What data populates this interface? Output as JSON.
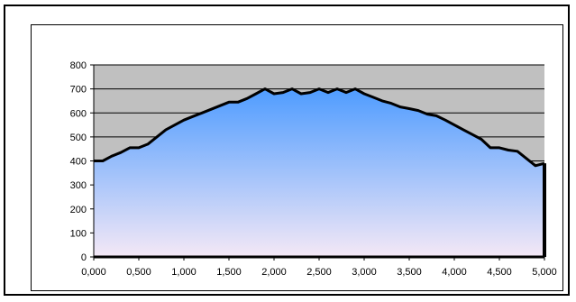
{
  "chart_data": {
    "type": "area",
    "title": "",
    "xlabel": "",
    "ylabel": "",
    "xlim": [
      0,
      5000
    ],
    "ylim": [
      0,
      800
    ],
    "x_ticks": [
      "0,000",
      "0,500",
      "1,000",
      "1,500",
      "2,000",
      "2,500",
      "3,000",
      "3,500",
      "4,000",
      "4,500",
      "5,000"
    ],
    "y_ticks": [
      "0",
      "100",
      "200",
      "300",
      "400",
      "500",
      "600",
      "700",
      "800"
    ],
    "grid": true,
    "legend": "none",
    "colors": {
      "plot_background": "#c0c0c0",
      "gridline": "#000000",
      "fill_top": "#4f9cff",
      "fill_bottom": "#f4e8f6",
      "line": "#000000"
    },
    "series": [
      {
        "x": [
          0,
          100,
          200,
          300,
          400,
          500,
          600,
          700,
          800,
          900,
          1000,
          1100,
          1200,
          1300,
          1400,
          1500,
          1600,
          1700,
          1800,
          1900,
          2000,
          2100,
          2200,
          2300,
          2400,
          2500,
          2600,
          2700,
          2800,
          2900,
          3000,
          3100,
          3200,
          3300,
          3400,
          3500,
          3600,
          3700,
          3800,
          3900,
          4000,
          4100,
          4200,
          4300,
          4400,
          4500,
          4600,
          4700,
          4800,
          4900,
          5000
        ],
        "values": [
          400,
          400,
          420,
          435,
          455,
          455,
          470,
          500,
          530,
          550,
          570,
          585,
          600,
          615,
          630,
          645,
          645,
          660,
          680,
          700,
          680,
          685,
          700,
          680,
          685,
          700,
          685,
          700,
          685,
          700,
          680,
          665,
          650,
          640,
          625,
          618,
          610,
          595,
          588,
          570,
          550,
          530,
          510,
          490,
          455,
          455,
          445,
          440,
          410,
          380,
          390
        ]
      }
    ]
  }
}
